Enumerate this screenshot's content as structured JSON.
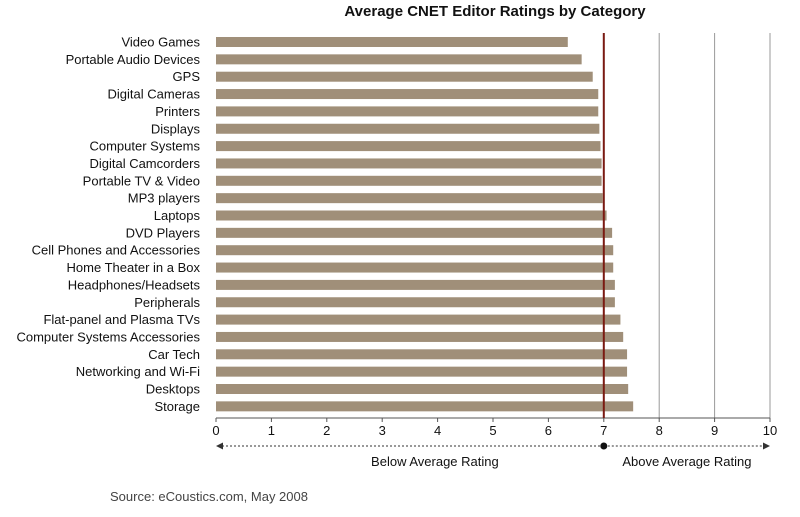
{
  "chart_data": {
    "type": "bar",
    "orientation": "horizontal",
    "title": "Average CNET Editor Ratings by Category",
    "categories": [
      "Video Games",
      "Portable Audio Devices",
      "GPS",
      "Digital Cameras",
      "Printers",
      "Displays",
      "Computer Systems",
      "Digital Camcorders",
      "Portable TV & Video",
      "MP3 players",
      "Laptops",
      "DVD Players",
      "Cell Phones and Accessories",
      "Home Theater in a Box",
      "Headphones/Headsets",
      "Peripherals",
      "Flat-panel and Plasma TVs",
      "Computer Systems Accessories",
      "Car Tech",
      "Networking and Wi-Fi",
      "Desktops",
      "Storage"
    ],
    "values": [
      6.35,
      6.6,
      6.8,
      6.9,
      6.9,
      6.92,
      6.94,
      6.96,
      6.96,
      6.98,
      7.05,
      7.15,
      7.17,
      7.17,
      7.2,
      7.2,
      7.3,
      7.35,
      7.42,
      7.42,
      7.44,
      7.53
    ],
    "xlim": [
      0,
      10
    ],
    "xticks": [
      "0",
      "1",
      "2",
      "3",
      "4",
      "5",
      "6",
      "7",
      "8",
      "9",
      "10"
    ],
    "average_line": 7.0,
    "grid": "vertical lines above average",
    "below_label": "Below Average Rating",
    "above_label": "Above Average Rating",
    "colors": {
      "bar": "#a08f79",
      "average_line": "#7a1a12",
      "grid": "#999999"
    }
  },
  "source": "Source: eCoustics.com, May 2008"
}
